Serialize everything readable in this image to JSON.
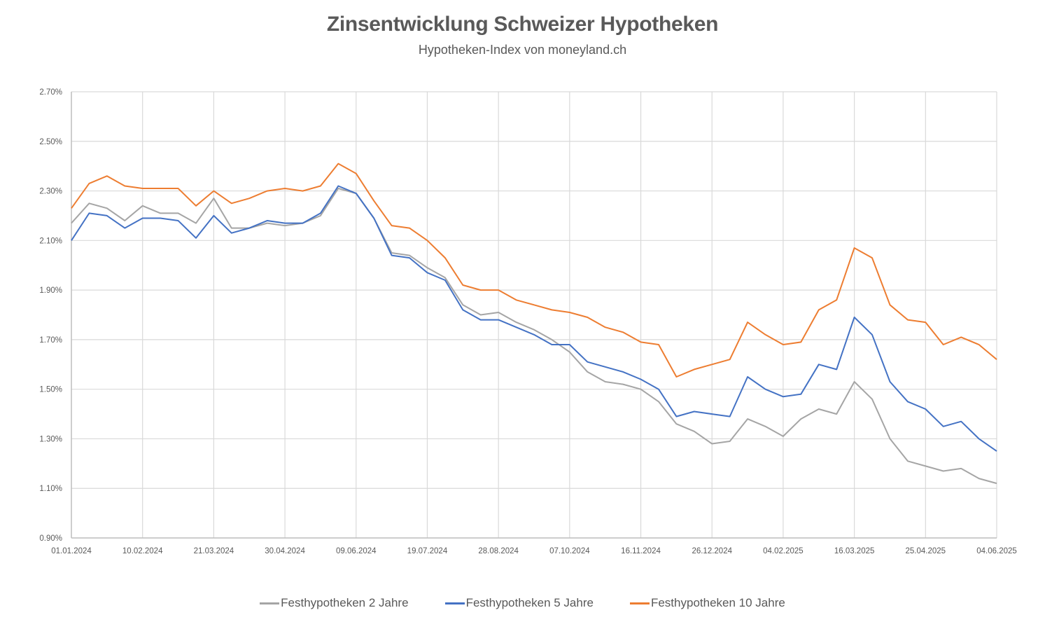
{
  "chart_data": {
    "type": "line",
    "title": "Zinsentwicklung Schweizer Hypotheken",
    "subtitle": "Hypotheken-Index von moneyland.ch",
    "xlabel": "",
    "ylabel": "",
    "ylim": [
      0.9,
      2.7
    ],
    "y_ticks": [
      "2.70%",
      "2.50%",
      "2.30%",
      "2.10%",
      "1.90%",
      "1.70%",
      "1.50%",
      "1.30%",
      "1.10%",
      "0.90%"
    ],
    "y_tick_values": [
      2.7,
      2.5,
      2.3,
      2.1,
      1.9,
      1.7,
      1.5,
      1.3,
      1.1,
      0.9
    ],
    "x_ticks": [
      "01.01.2024",
      "10.02.2024",
      "21.03.2024",
      "30.04.2024",
      "09.06.2024",
      "19.07.2024",
      "28.08.2024",
      "07.10.2024",
      "16.11.2024",
      "26.12.2024",
      "04.02.2025",
      "16.03.2025",
      "25.04.2025",
      "04.06.2025"
    ],
    "x_tick_days": [
      0,
      40,
      80,
      120,
      160,
      200,
      240,
      280,
      320,
      360,
      400,
      440,
      480,
      520
    ],
    "x_range_days": [
      0,
      520
    ],
    "grid": true,
    "legend_position": "bottom",
    "x_days": [
      0,
      10,
      20,
      30,
      40,
      50,
      60,
      70,
      80,
      90,
      100,
      110,
      120,
      130,
      140,
      150,
      160,
      170,
      180,
      190,
      200,
      210,
      220,
      230,
      240,
      250,
      260,
      270,
      280,
      290,
      300,
      310,
      320,
      330,
      340,
      350,
      360,
      370,
      380,
      390,
      400,
      410,
      420,
      430,
      440,
      450,
      460,
      470,
      480,
      490,
      500,
      510,
      520
    ],
    "series": [
      {
        "name": "Festhypotheken 2 Jahre",
        "color": "#a5a5a5",
        "values": [
          2.17,
          2.25,
          2.23,
          2.18,
          2.24,
          2.21,
          2.21,
          2.17,
          2.27,
          2.15,
          2.15,
          2.17,
          2.16,
          2.17,
          2.2,
          2.31,
          2.29,
          2.19,
          2.05,
          2.04,
          1.99,
          1.95,
          1.84,
          1.8,
          1.81,
          1.77,
          1.74,
          1.7,
          1.65,
          1.57,
          1.53,
          1.52,
          1.5,
          1.45,
          1.36,
          1.33,
          1.28,
          1.29,
          1.38,
          1.35,
          1.31,
          1.38,
          1.42,
          1.4,
          1.53,
          1.46,
          1.3,
          1.21,
          1.19,
          1.17,
          1.18,
          1.14,
          1.12
        ]
      },
      {
        "name": "Festhypotheken 5 Jahre",
        "color": "#4472c4",
        "values": [
          2.1,
          2.21,
          2.2,
          2.15,
          2.19,
          2.19,
          2.18,
          2.11,
          2.2,
          2.13,
          2.15,
          2.18,
          2.17,
          2.17,
          2.21,
          2.32,
          2.29,
          2.19,
          2.04,
          2.03,
          1.97,
          1.94,
          1.82,
          1.78,
          1.78,
          1.75,
          1.72,
          1.68,
          1.68,
          1.61,
          1.59,
          1.57,
          1.54,
          1.5,
          1.39,
          1.41,
          1.4,
          1.39,
          1.55,
          1.5,
          1.47,
          1.48,
          1.6,
          1.58,
          1.79,
          1.72,
          1.53,
          1.45,
          1.42,
          1.35,
          1.37,
          1.3,
          1.25
        ]
      },
      {
        "name": "Festhypotheken 10 Jahre",
        "color": "#ed7d31",
        "values": [
          2.23,
          2.33,
          2.36,
          2.32,
          2.31,
          2.31,
          2.31,
          2.24,
          2.3,
          2.25,
          2.27,
          2.3,
          2.31,
          2.3,
          2.32,
          2.41,
          2.37,
          2.26,
          2.16,
          2.15,
          2.1,
          2.03,
          1.92,
          1.9,
          1.9,
          1.86,
          1.84,
          1.82,
          1.81,
          1.79,
          1.75,
          1.73,
          1.69,
          1.68,
          1.55,
          1.58,
          1.6,
          1.62,
          1.77,
          1.72,
          1.68,
          1.69,
          1.82,
          1.86,
          2.07,
          2.03,
          1.84,
          1.78,
          1.77,
          1.68,
          1.71,
          1.68,
          1.62
        ]
      }
    ]
  }
}
